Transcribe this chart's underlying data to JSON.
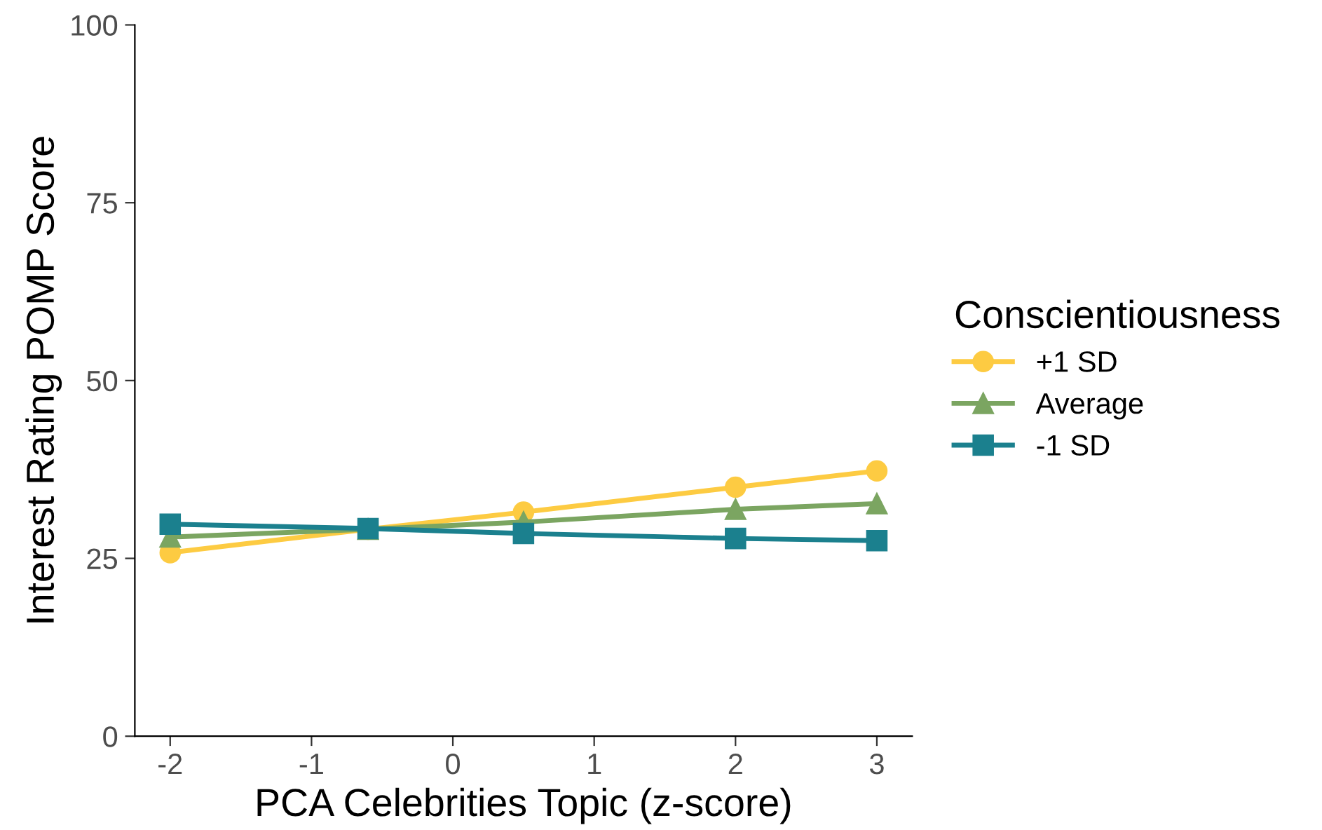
{
  "chart_data": {
    "type": "line",
    "xlabel": "PCA Celebrities Topic (z-score)",
    "ylabel": "Interest Rating POMP Score",
    "legend_title": "Conscientiousness",
    "x": [
      -2,
      -0.6,
      0.5,
      2,
      3
    ],
    "series": [
      {
        "name": "+1 SD",
        "color": "#fdcb42",
        "marker": "circle",
        "values": [
          25.8,
          29.1,
          31.5,
          35.0,
          37.3
        ]
      },
      {
        "name": "Average",
        "color": "#7ba561",
        "marker": "triangle",
        "values": [
          28.0,
          29.1,
          30.1,
          31.9,
          32.7
        ]
      },
      {
        "name": "-1 SD",
        "color": "#1b808e",
        "marker": "square",
        "values": [
          29.8,
          29.2,
          28.5,
          27.8,
          27.5
        ]
      }
    ],
    "xlim": [
      -2.25,
      3.25
    ],
    "ylim": [
      0,
      100
    ],
    "xticks": [
      {
        "value": -2,
        "label": "-2"
      },
      {
        "value": -1,
        "label": "-1"
      },
      0,
      1,
      2,
      3
    ],
    "yticks": [
      0,
      25,
      50,
      75,
      100
    ],
    "grid": false,
    "legend": "right",
    "line_style": "solid"
  }
}
